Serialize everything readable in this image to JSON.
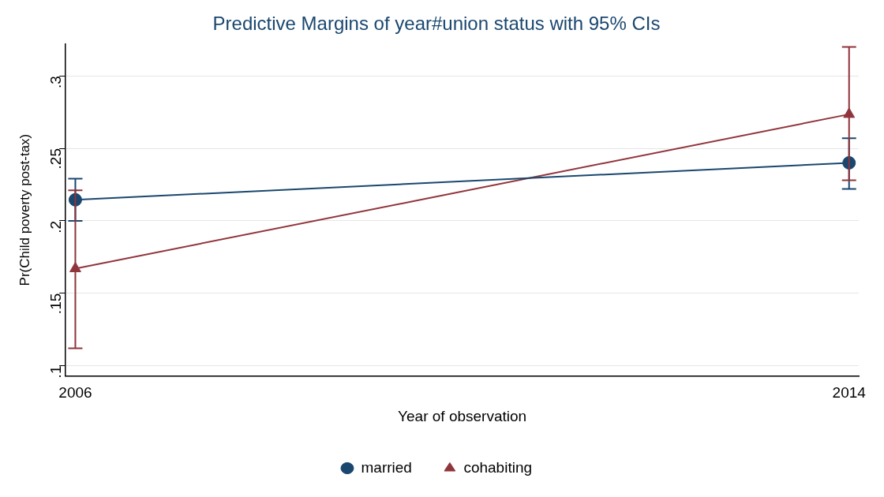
{
  "chart_data": {
    "type": "line",
    "title": "Predictive Margins of year#union status with 95% CIs",
    "xlabel": "Year of observation",
    "ylabel": "Pr(Child poverty post-tax)",
    "x": [
      2006,
      2014
    ],
    "series": [
      {
        "name": "married",
        "color": "#1a476f",
        "marker": "circle",
        "values": [
          0.2145,
          0.24
        ],
        "errors": [
          [
            0.2,
            0.229
          ],
          [
            0.222,
            0.257
          ]
        ]
      },
      {
        "name": "cohabiting",
        "color": "#90353b",
        "marker": "triangle",
        "values": [
          0.167,
          0.2735
        ],
        "errors": [
          [
            0.112,
            0.221
          ],
          [
            0.228,
            0.32
          ]
        ]
      }
    ],
    "xlim": [
      2005.9,
      2014.1
    ],
    "xticks": [
      2006,
      2014
    ],
    "ylim": [
      0.093,
      0.322
    ],
    "yticks": [
      {
        "value": 0.1,
        "label": ".1"
      },
      {
        "value": 0.15,
        "label": ".15"
      },
      {
        "value": 0.2,
        "label": ".2"
      },
      {
        "value": 0.25,
        "label": ".25"
      },
      {
        "value": 0.3,
        "label": ".3"
      }
    ],
    "grid": "y",
    "legend": "bottom",
    "line_style": "solid"
  }
}
